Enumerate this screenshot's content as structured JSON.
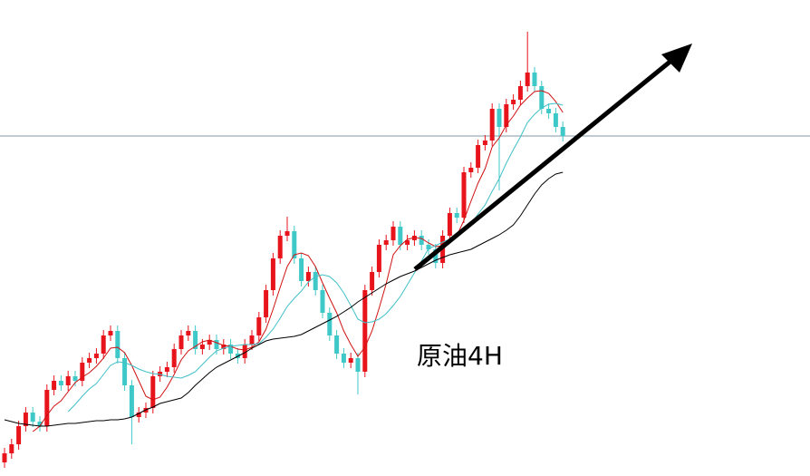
{
  "chart_data": {
    "type": "candlestick",
    "annotation": "原油4H",
    "ylim": [
      0,
      525
    ],
    "hline": 375,
    "hline_color": "#7f98a8",
    "up_color": "#e8141c",
    "down_color": "#3ec8c8",
    "open": [
      15,
      25,
      35,
      55,
      70,
      60,
      55,
      95,
      105,
      100,
      110,
      105,
      125,
      130,
      135,
      155,
      160,
      130,
      100,
      65,
      70,
      75,
      110,
      115,
      120,
      140,
      155,
      160,
      140,
      145,
      150,
      140,
      145,
      135,
      130,
      145,
      155,
      175,
      205,
      240,
      265,
      270,
      240,
      215,
      225,
      205,
      180,
      155,
      135,
      125,
      130,
      115,
      205,
      225,
      255,
      260,
      275,
      255,
      260,
      265,
      255,
      250,
      235,
      265,
      290,
      285,
      335,
      340,
      365,
      370,
      405,
      385,
      410,
      415,
      430,
      445,
      430,
      405,
      400,
      385
    ],
    "high": [
      31,
      41,
      61,
      76,
      76,
      66,
      101,
      111,
      111,
      116,
      116,
      131,
      136,
      141,
      161,
      166,
      166,
      136,
      106,
      76,
      81,
      116,
      121,
      126,
      146,
      161,
      166,
      166,
      151,
      156,
      156,
      151,
      151,
      141,
      151,
      161,
      181,
      211,
      246,
      271,
      286,
      276,
      246,
      231,
      231,
      211,
      186,
      161,
      141,
      136,
      136,
      211,
      231,
      261,
      266,
      281,
      281,
      266,
      271,
      271,
      261,
      256,
      271,
      296,
      296,
      341,
      346,
      371,
      376,
      411,
      411,
      416,
      421,
      436,
      490,
      451,
      436,
      411,
      406,
      391
    ],
    "low": [
      9,
      19,
      29,
      49,
      54,
      49,
      49,
      89,
      94,
      94,
      99,
      99,
      119,
      124,
      129,
      149,
      124,
      94,
      35,
      59,
      64,
      69,
      104,
      109,
      114,
      134,
      149,
      134,
      134,
      139,
      134,
      134,
      129,
      124,
      124,
      139,
      149,
      169,
      199,
      234,
      259,
      234,
      209,
      209,
      199,
      174,
      149,
      129,
      119,
      119,
      90,
      109,
      199,
      219,
      249,
      254,
      249,
      249,
      254,
      249,
      244,
      229,
      229,
      259,
      279,
      279,
      329,
      334,
      359,
      364,
      315,
      379,
      404,
      409,
      424,
      424,
      399,
      394,
      379,
      369
    ],
    "close": [
      25,
      35,
      55,
      70,
      60,
      55,
      95,
      105,
      100,
      110,
      105,
      125,
      130,
      135,
      155,
      160,
      130,
      100,
      65,
      70,
      75,
      110,
      115,
      120,
      140,
      155,
      160,
      140,
      145,
      150,
      140,
      145,
      135,
      130,
      145,
      155,
      175,
      205,
      240,
      265,
      270,
      240,
      215,
      225,
      205,
      180,
      155,
      135,
      125,
      130,
      115,
      205,
      225,
      255,
      260,
      275,
      255,
      260,
      265,
      255,
      250,
      235,
      265,
      290,
      285,
      335,
      340,
      365,
      370,
      405,
      385,
      410,
      415,
      430,
      445,
      430,
      405,
      400,
      385,
      375
    ],
    "lines": [
      {
        "color": "#d01010",
        "values": [
          null,
          null,
          null,
          null,
          49,
          55,
          67,
          77,
          83,
          93,
          103,
          109,
          114,
          121,
          130,
          141,
          142,
          136,
          122,
          105,
          88,
          84,
          87,
          98,
          112,
          128,
          138,
          143,
          148,
          150,
          147,
          144,
          143,
          140,
          139,
          142,
          148,
          162,
          184,
          208,
          231,
          244,
          246,
          243,
          231,
          213,
          196,
          180,
          160,
          145,
          132,
          142,
          160,
          185,
          212,
          244,
          254,
          261,
          263,
          262,
          257,
          253,
          254,
          259,
          265,
          282,
          303,
          323,
          339,
          363,
          373,
          387,
          397,
          409,
          417,
          424,
          425,
          422,
          413,
          401
        ]
      },
      {
        "color": "#40c0c8",
        "values": [
          null,
          null,
          null,
          null,
          null,
          null,
          null,
          null,
          null,
          71,
          79,
          88,
          96,
          102,
          112,
          122,
          126,
          125,
          122,
          118,
          115,
          113,
          112,
          110,
          109,
          108,
          111,
          115,
          123,
          131,
          138,
          141,
          143,
          144,
          145,
          145,
          146,
          153,
          162,
          174,
          187,
          196,
          204,
          214,
          220,
          222,
          220,
          213,
          202,
          188,
          173,
          169,
          170,
          173,
          179,
          188,
          198,
          211,
          224,
          237,
          251,
          254,
          258,
          261,
          264,
          270,
          278,
          289,
          299,
          314,
          328,
          345,
          360,
          374,
          390,
          399,
          406,
          410,
          411,
          409
        ]
      },
      {
        "color": "#000000",
        "values": [
          62,
          60,
          58,
          57,
          56,
          55,
          55,
          56,
          57,
          58,
          58,
          59,
          60,
          61,
          61,
          62,
          62,
          63,
          65,
          69,
          73,
          76,
          80,
          82,
          84,
          86,
          92,
          100,
          107,
          114,
          120,
          124,
          128,
          132,
          136,
          141,
          145,
          149,
          151,
          152,
          153,
          154,
          156,
          160,
          164,
          168,
          172,
          176,
          181,
          186,
          192,
          197,
          202,
          207,
          212,
          216,
          220,
          223,
          226,
          230,
          234,
          238,
          241,
          244,
          246,
          248,
          250,
          254,
          258,
          262,
          266,
          271,
          277,
          287,
          299,
          311,
          321,
          328,
          333,
          335
        ]
      }
    ]
  }
}
